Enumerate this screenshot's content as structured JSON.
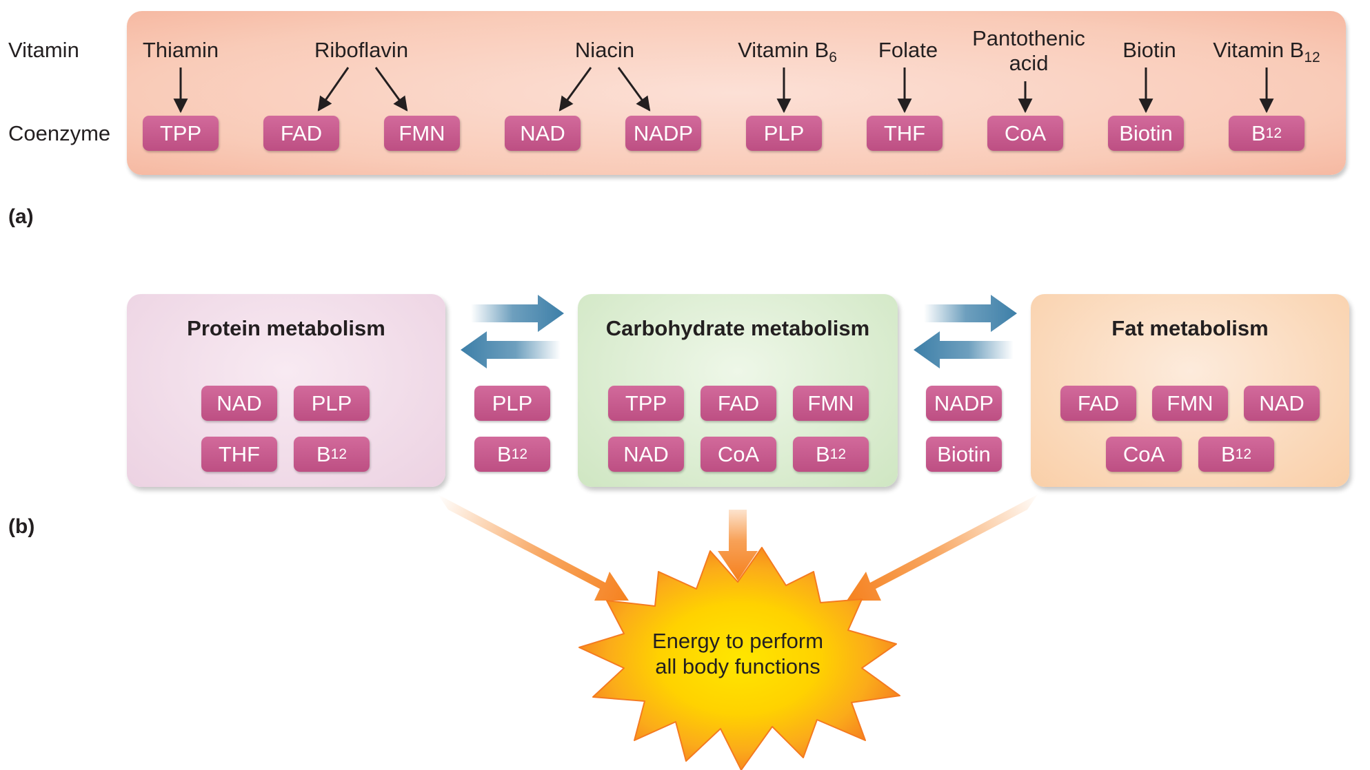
{
  "part_a": {
    "label": "(a)",
    "row_labels": {
      "vitamin": "Vitamin",
      "coenzyme": "Coenzyme"
    },
    "vitamins": [
      {
        "name": "Thiamin"
      },
      {
        "name": "Riboflavin"
      },
      {
        "name": "Niacin"
      },
      {
        "name": "Vitamin B",
        "sub": "6"
      },
      {
        "name": "Folate"
      },
      {
        "name": "Pantothenic acid",
        "line1": "Pantothenic",
        "line2": "acid"
      },
      {
        "name": "Biotin"
      },
      {
        "name": "Vitamin B",
        "sub": "12"
      }
    ],
    "coenzymes": [
      {
        "text": "TPP"
      },
      {
        "text": "FAD"
      },
      {
        "text": "FMN"
      },
      {
        "text": "NAD"
      },
      {
        "text": "NADP"
      },
      {
        "text": "PLP"
      },
      {
        "text": "THF"
      },
      {
        "text": "CoA"
      },
      {
        "text": "Biotin"
      },
      {
        "text": "B",
        "sub": "12"
      }
    ]
  },
  "part_b": {
    "label": "(b)",
    "protein": {
      "title": "Protein metabolism",
      "coenzymes": [
        {
          "text": "NAD"
        },
        {
          "text": "PLP"
        },
        {
          "text": "THF"
        },
        {
          "text": "B",
          "sub": "12"
        }
      ]
    },
    "between_protein_carb": [
      {
        "text": "PLP"
      },
      {
        "text": "B",
        "sub": "12"
      }
    ],
    "carbohydrate": {
      "title": "Carbohydrate metabolism",
      "coenzymes": [
        {
          "text": "TPP"
        },
        {
          "text": "FAD"
        },
        {
          "text": "FMN"
        },
        {
          "text": "NAD"
        },
        {
          "text": "CoA"
        },
        {
          "text": "B",
          "sub": "12"
        }
      ]
    },
    "between_carb_fat": [
      {
        "text": "NADP"
      },
      {
        "text": "Biotin"
      }
    ],
    "fat": {
      "title": "Fat metabolism",
      "coenzymes": [
        {
          "text": "FAD"
        },
        {
          "text": "FMN"
        },
        {
          "text": "NAD"
        },
        {
          "text": "CoA"
        },
        {
          "text": "B",
          "sub": "12"
        }
      ]
    },
    "energy": {
      "line1": "Energy to perform",
      "line2": "all body functions"
    }
  },
  "colors": {
    "panel_a": "#f9c3ad",
    "coenzyme_pill": "#c95b8f",
    "protein_box": "#eed7e6",
    "carb_box": "#d3e8c8",
    "fat_box": "#fbd3b0",
    "exchange_arrow": "#3d7fa8",
    "energy_arrow": "#f58220",
    "burst_outer": "#f47a20",
    "burst_inner": "#ffdd00"
  }
}
